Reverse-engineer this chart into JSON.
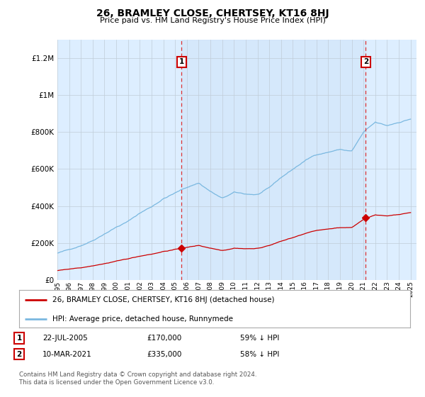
{
  "title": "26, BRAMLEY CLOSE, CHERTSEY, KT16 8HJ",
  "subtitle": "Price paid vs. HM Land Registry's House Price Index (HPI)",
  "legend_line1": "26, BRAMLEY CLOSE, CHERTSEY, KT16 8HJ (detached house)",
  "legend_line2": "HPI: Average price, detached house, Runnymede",
  "footer": "Contains HM Land Registry data © Crown copyright and database right 2024.\nThis data is licensed under the Open Government Licence v3.0.",
  "sale1_year": 2005.55,
  "sale1_price": 170000,
  "sale2_year": 2021.19,
  "sale2_price": 335000,
  "hpi_color": "#7ab8e0",
  "price_color": "#cc0000",
  "background_color": "#ddeeff",
  "shade_color": "#cce0f5",
  "grid_color": "#c0ccd8",
  "ylim_max": 1300000,
  "xlim_start": 1995,
  "xlim_end": 2025.5,
  "ann1_date": "22-JUL-2005",
  "ann1_price": "£170,000",
  "ann1_pct": "59% ↓ HPI",
  "ann2_date": "10-MAR-2021",
  "ann2_price": "£335,000",
  "ann2_pct": "58% ↓ HPI"
}
